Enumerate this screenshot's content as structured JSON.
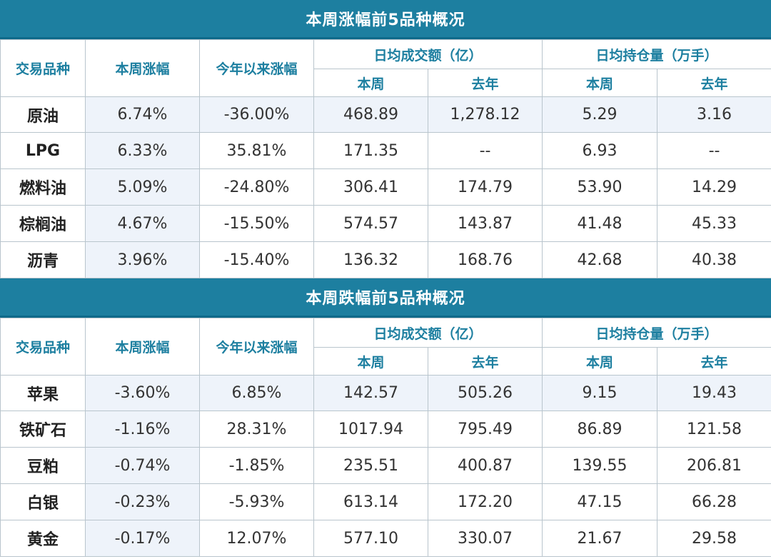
{
  "tables": [
    {
      "title": "本周涨幅前5品种概况",
      "headers": {
        "item": "交易品种",
        "week_change": "本周涨幅",
        "ytd_change": "今年以来涨幅",
        "avg_volume": "日均成交额（亿）",
        "avg_oi": "日均持仓量（万手）",
        "this_week": "本周",
        "last_year": "去年"
      },
      "rows": [
        {
          "name": "原油",
          "week": "6.74%",
          "ytd": "-36.00%",
          "vol_week": "468.89",
          "vol_last": "1,278.12",
          "oi_week": "5.29",
          "oi_last": "3.16"
        },
        {
          "name": "LPG",
          "week": "6.33%",
          "ytd": "35.81%",
          "vol_week": "171.35",
          "vol_last": "--",
          "oi_week": "6.93",
          "oi_last": "--"
        },
        {
          "name": "燃料油",
          "week": "5.09%",
          "ytd": "-24.80%",
          "vol_week": "306.41",
          "vol_last": "174.79",
          "oi_week": "53.90",
          "oi_last": "14.29"
        },
        {
          "name": "棕榈油",
          "week": "4.67%",
          "ytd": "-15.50%",
          "vol_week": "574.57",
          "vol_last": "143.87",
          "oi_week": "41.48",
          "oi_last": "45.33"
        },
        {
          "name": "沥青",
          "week": "3.96%",
          "ytd": "-15.40%",
          "vol_week": "136.32",
          "vol_last": "168.76",
          "oi_week": "42.68",
          "oi_last": "40.38"
        }
      ]
    },
    {
      "title": "本周跌幅前5品种概况",
      "headers": {
        "item": "交易品种",
        "week_change": "本周涨幅",
        "ytd_change": "今年以来涨幅",
        "avg_volume": "日均成交额（亿）",
        "avg_oi": "日均持仓量（万手）",
        "this_week": "本周",
        "last_year": "去年"
      },
      "rows": [
        {
          "name": "苹果",
          "week": "-3.60%",
          "ytd": "6.85%",
          "vol_week": "142.57",
          "vol_last": "505.26",
          "oi_week": "9.15",
          "oi_last": "19.43"
        },
        {
          "name": "铁矿石",
          "week": "-1.16%",
          "ytd": "28.31%",
          "vol_week": "1017.94",
          "vol_last": "795.49",
          "oi_week": "86.89",
          "oi_last": "121.58"
        },
        {
          "name": "豆粕",
          "week": "-0.74%",
          "ytd": "-1.85%",
          "vol_week": "235.51",
          "vol_last": "400.87",
          "oi_week": "139.55",
          "oi_last": "206.81"
        },
        {
          "name": "白银",
          "week": "-0.23%",
          "ytd": "-5.93%",
          "vol_week": "613.14",
          "vol_last": "172.20",
          "oi_week": "47.15",
          "oi_last": "66.28"
        },
        {
          "name": "黄金",
          "week": "-0.17%",
          "ytd": "12.07%",
          "vol_week": "577.10",
          "vol_last": "330.07",
          "oi_week": "21.67",
          "oi_last": "29.58"
        }
      ]
    }
  ],
  "colors": {
    "header_bg": "#1d7fa0",
    "header_text": "#ffffff",
    "column_header_text": "#1d7fa0",
    "row_shade": "#eef3fa",
    "border": "#b9c5cd"
  }
}
